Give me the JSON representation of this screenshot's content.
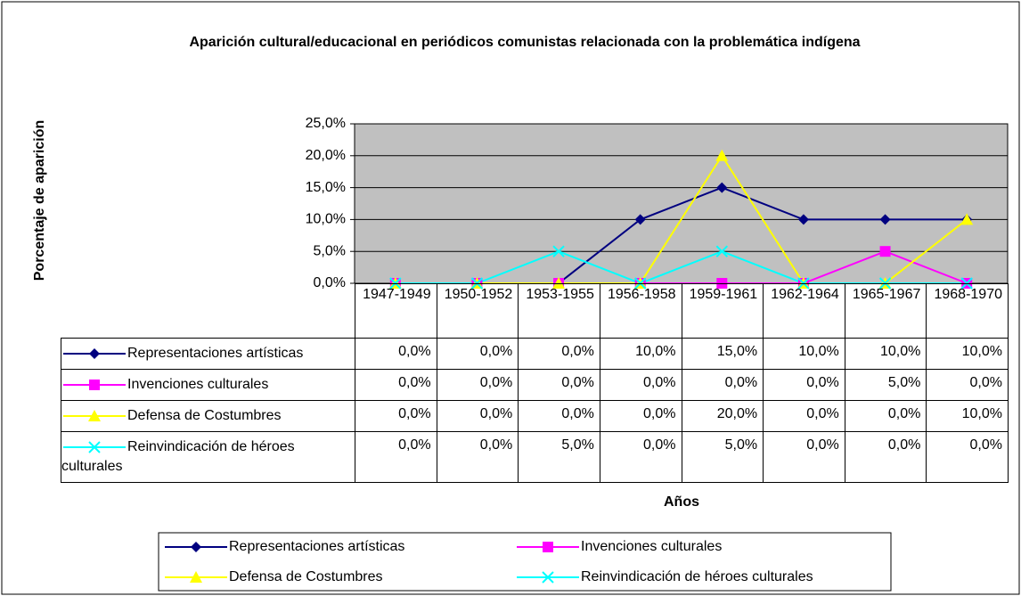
{
  "chart_data": {
    "type": "line",
    "title": "Aparición cultural/educacional en periódicos comunistas relacionada con la problemática indígena",
    "y_label": "Porcentaje de aparición",
    "x_label": "Años",
    "categories": [
      "1947-1949",
      "1950-1952",
      "1953-1955",
      "1956-1958",
      "1959-1961",
      "1962-1964",
      "1965-1967",
      "1968-1970"
    ],
    "ylim": [
      0,
      25
    ],
    "yticks": [
      {
        "value": 0,
        "label": "0,0%"
      },
      {
        "value": 5,
        "label": "5,0%"
      },
      {
        "value": 10,
        "label": "10,0%"
      },
      {
        "value": 15,
        "label": "15,0%"
      },
      {
        "value": 20,
        "label": "20,0%"
      },
      {
        "value": 25,
        "label": "25,0%"
      }
    ],
    "grid": true,
    "plot_background": "#c0c0c0",
    "legend": "bottom",
    "series": [
      {
        "name": "Representaciones artísticas",
        "color": "#000080",
        "marker": "diamond",
        "values": [
          0,
          0,
          0,
          10,
          15,
          10,
          10,
          10
        ],
        "value_labels": [
          "0,0%",
          "0,0%",
          "0,0%",
          "10,0%",
          "15,0%",
          "10,0%",
          "10,0%",
          "10,0%"
        ]
      },
      {
        "name": "Invenciones culturales",
        "color": "#ff00ff",
        "marker": "square",
        "values": [
          0,
          0,
          0,
          0,
          0,
          0,
          5,
          0
        ],
        "value_labels": [
          "0,0%",
          "0,0%",
          "0,0%",
          "0,0%",
          "0,0%",
          "0,0%",
          "5,0%",
          "0,0%"
        ]
      },
      {
        "name": "Defensa de Costumbres",
        "color": "#ffff00",
        "marker": "triangle",
        "values": [
          0,
          0,
          0,
          0,
          20,
          0,
          0,
          10
        ],
        "value_labels": [
          "0,0%",
          "0,0%",
          "0,0%",
          "0,0%",
          "20,0%",
          "0,0%",
          "0,0%",
          "10,0%"
        ]
      },
      {
        "name": "Reinvindicación de héroes culturales",
        "color": "#00ffff",
        "marker": "x",
        "values": [
          0,
          0,
          5,
          0,
          5,
          0,
          0,
          0
        ],
        "value_labels": [
          "0,0%",
          "0,0%",
          "5,0%",
          "0,0%",
          "5,0%",
          "0,0%",
          "0,0%",
          "0,0%"
        ]
      }
    ]
  }
}
